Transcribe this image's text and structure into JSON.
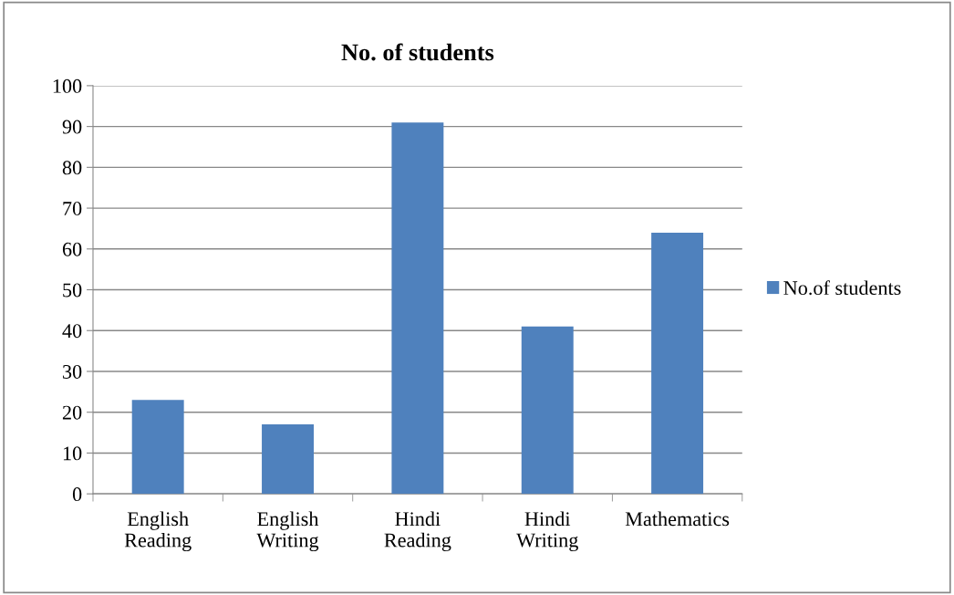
{
  "chart_data": {
    "type": "bar",
    "title": "No. of students",
    "categories": [
      "English\nReading",
      "English\nWriting",
      "Hindi\nReading",
      "Hindi\nWriting",
      "Mathematics"
    ],
    "series": [
      {
        "name": "No.of students",
        "color": "#4f81bd",
        "values": [
          23,
          17,
          91,
          41,
          64
        ]
      }
    ],
    "ylim": [
      0,
      100
    ],
    "yticks": [
      0,
      10,
      20,
      30,
      40,
      50,
      60,
      70,
      80,
      90,
      100
    ],
    "grid": "y",
    "legend": "right"
  }
}
